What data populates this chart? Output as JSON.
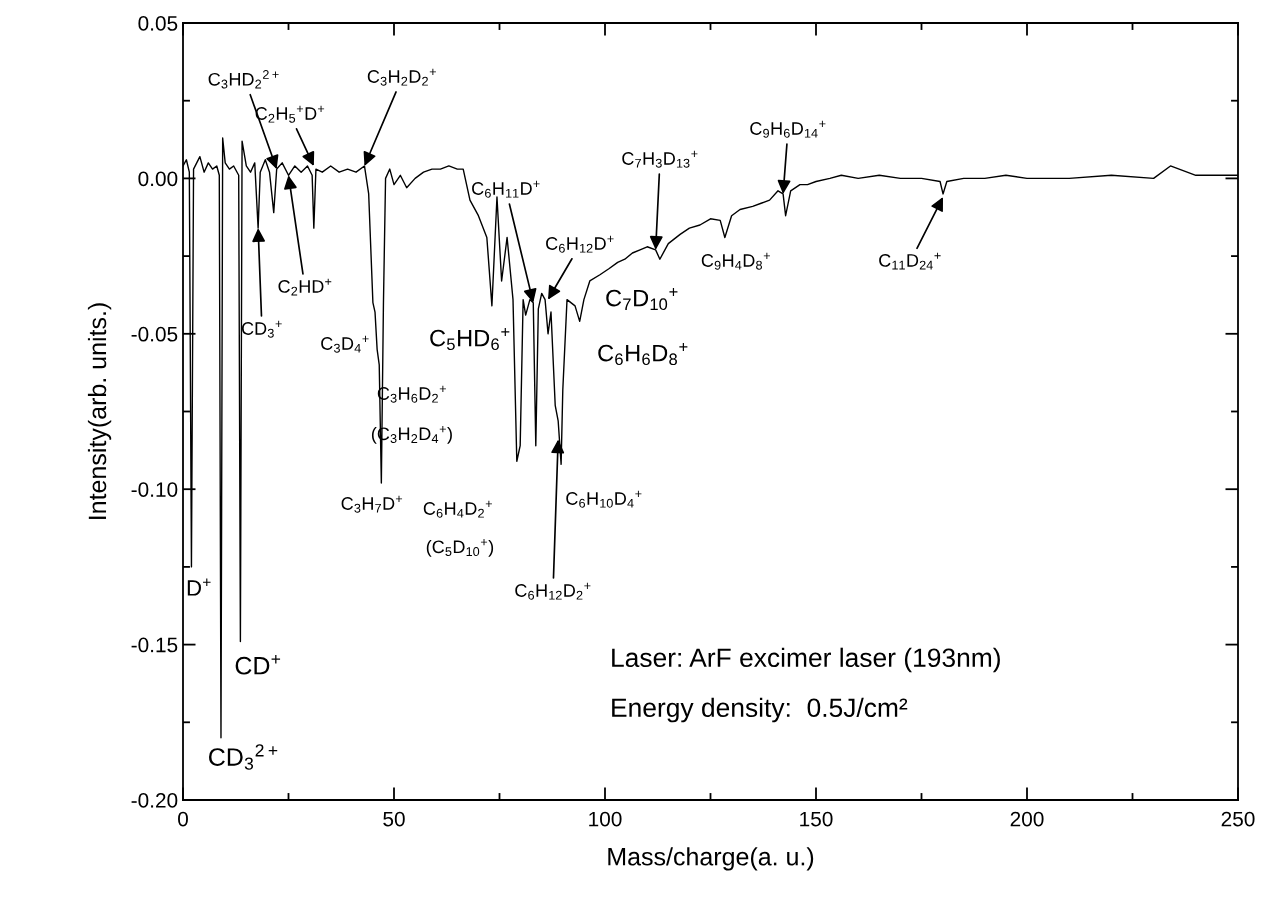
{
  "chart_data": {
    "type": "line",
    "xlabel": "Mass/charge(a. u.)",
    "ylabel": "Intensity(arb. units.)",
    "xlim": [
      0,
      250
    ],
    "xticks": [
      0,
      50,
      100,
      150,
      200,
      250
    ],
    "ylim": [
      -0.2,
      0.05
    ],
    "yticks": [
      {
        "value": -0.2,
        "label": "-0.20"
      },
      {
        "value": -0.15,
        "label": "-0.15"
      },
      {
        "value": -0.1,
        "label": "-0.10"
      },
      {
        "value": -0.05,
        "label": "-0.05"
      },
      {
        "value": 0,
        "label": "0.00"
      },
      {
        "value": 0.05,
        "label": "0.05"
      }
    ],
    "grid": false,
    "legend": false,
    "marker": "none",
    "line_style": "solid",
    "series": [
      {
        "color": "#000000",
        "x": [
          0,
          0.8,
          1.5,
          2,
          2.5,
          4,
          5,
          6,
          7,
          8,
          8.6,
          9,
          9.4,
          10,
          11,
          12,
          13.2,
          13.6,
          14,
          15,
          16,
          17,
          17.8,
          18.3,
          19.5,
          20.5,
          21.5,
          22.2,
          23.5,
          25,
          26.5,
          28,
          29.5,
          30.6,
          31,
          31.5,
          33,
          35,
          37,
          39,
          41,
          43,
          44,
          45,
          45.5,
          46,
          46.5,
          47,
          47.5,
          48,
          49,
          50,
          51.5,
          53,
          55,
          57,
          59,
          61,
          63,
          65,
          66.4,
          68,
          70,
          72,
          73.2,
          74.4,
          75.5,
          76.8,
          78.2,
          79.1,
          79.9,
          80.6,
          81.2,
          82.2,
          83,
          83.6,
          84.2,
          85,
          85.8,
          86.5,
          87.2,
          88.2,
          88.9,
          89.6,
          90,
          91,
          92.9,
          94,
          95,
          96.4,
          98.8,
          101,
          103,
          104.7,
          106.5,
          108.3,
          110,
          112,
          113,
          115,
          117.8,
          120,
          122.5,
          125,
          127.3,
          128.4,
          130,
          132,
          135,
          137,
          139,
          141,
          142.2,
          142.8,
          144,
          146.2,
          148,
          150,
          153.3,
          156,
          160,
          165,
          170,
          175,
          179.4,
          180.1,
          181,
          185,
          190,
          195,
          200,
          210,
          220,
          230,
          234,
          240,
          245,
          250
        ],
        "values": [
          0.004,
          0.006,
          0.002,
          -0.125,
          0.003,
          0.007,
          0.002,
          0.005,
          0.003,
          0.004,
          0.001,
          -0.18,
          0.013,
          0.005,
          0.003,
          0.004,
          0.001,
          -0.149,
          0.012,
          0.004,
          0.002,
          0.005,
          -0.016,
          0.002,
          0.006,
          0.002,
          -0.011,
          0.003,
          0.005,
          0.001,
          0.004,
          0.002,
          0.004,
          0.001,
          -0.016,
          0.003,
          0.002,
          0.004,
          0.002,
          0.003,
          0.002,
          0.004,
          -0.005,
          -0.04,
          -0.043,
          -0.055,
          -0.06,
          -0.098,
          -0.04,
          0.0,
          0.003,
          -0.002,
          0.001,
          -0.003,
          0.0,
          0.002,
          0.003,
          0.003,
          0.004,
          0.003,
          0.003,
          -0.007,
          -0.012,
          -0.019,
          -0.041,
          -0.006,
          -0.033,
          -0.019,
          -0.039,
          -0.091,
          -0.086,
          -0.039,
          -0.044,
          -0.039,
          -0.04,
          -0.086,
          -0.042,
          -0.037,
          -0.039,
          -0.05,
          -0.043,
          -0.073,
          -0.078,
          -0.092,
          -0.068,
          -0.039,
          -0.041,
          -0.046,
          -0.039,
          -0.033,
          -0.031,
          -0.029,
          -0.027,
          -0.026,
          -0.024,
          -0.023,
          -0.022,
          -0.023,
          -0.026,
          -0.021,
          -0.018,
          -0.016,
          -0.015,
          -0.013,
          -0.0135,
          -0.019,
          -0.012,
          -0.01,
          -0.009,
          -0.008,
          -0.007,
          -0.004,
          -0.005,
          -0.012,
          -0.004,
          -0.002,
          -0.002,
          -0.001,
          0.0,
          0.001,
          0.0,
          0.001,
          0.0,
          0.0,
          -0.001,
          -0.005,
          -0.001,
          0.0,
          0.0,
          0.001,
          0.0,
          0.0,
          0.001,
          0.0,
          0.004,
          0.001,
          0.001,
          0.001
        ]
      }
    ],
    "annotations": [
      {
        "text": "D$^{+}$",
        "x": 2,
        "y": -0.125
      },
      {
        "text": "CD$^{+}$",
        "x": 13.6,
        "y": -0.149
      },
      {
        "text": "CD$_{3}$$^{2+}$",
        "x": 9,
        "y": -0.18
      },
      {
        "text": "CD$_{3}$$^{+}$",
        "x": 17.8,
        "y": -0.016
      },
      {
        "text": "C$_{2}$HD$^{+}$",
        "x": 25,
        "y": 0.001
      },
      {
        "text": "C$_{3}$HD$_{2}$$^{2+}$",
        "x": 22.2,
        "y": 0.003
      },
      {
        "text": "C$_{2}$H$_{5}$$^{+}$D$^{+}$",
        "x": 31,
        "y": 0.004
      },
      {
        "text": "C$_{3}$H$_{2}$D$_{2}$$^{+}$",
        "x": 43,
        "y": 0.004
      },
      {
        "text": "C$_{3}$D$_{4}$$^{+}$",
        "x": 45.5,
        "y": -0.043
      },
      {
        "text": "C$_{3}$H$_{6}$D$_{2}$$^{+}$",
        "x": 46.5,
        "y": -0.06
      },
      "(C$_{3}$H$_{2}$D$_{4}$$^{+}$)",
      {
        "text": "C$_{3}$H$_{7}$D$^{+}$",
        "x": 47,
        "y": -0.098
      },
      "C$_{5}$HD$_{6}$$^{+}$",
      "C$_{6}$H$_{4}$D$_{2}$$^{+}$",
      "(C$_{5}$D$_{10}$$^{+}$)",
      {
        "text": "C$_{6}$H$_{12}$D$_{2}$$^{+}$",
        "x": 88.9,
        "y": -0.084
      },
      {
        "text": "C$_{6}$H$_{10}$D$_{4}$$^{+}$",
        "x": 89.6,
        "y": -0.092
      },
      {
        "text": "C$_{6}$H$_{11}$D$^{+}$",
        "x": 83,
        "y": -0.04
      },
      {
        "text": "C$_{6}$H$_{12}$D$^{+}$",
        "x": 86.5,
        "y": -0.039
      },
      {
        "text": "C$_{7}$D$_{10}$$^{+}$",
        "x": 96.4,
        "y": -0.033
      },
      {
        "text": "C$_{6}$H$_{6}$D$_{8}$$^{+}$",
        "x": 94,
        "y": -0.046
      },
      {
        "text": "C$_{7}$H$_{3}$D$_{13}$$^{+}$",
        "x": 112,
        "y": -0.023
      },
      {
        "text": "C$_{9}$H$_{4}$D$_{8}$$^{+}$",
        "x": 128.4,
        "y": -0.019
      },
      {
        "text": "C$_{9}$H$_{6}$D$_{14}$$^{+}$",
        "x": 142.2,
        "y": -0.005
      },
      {
        "text": "C$_{11}$D$_{24}$$^{+}$",
        "x": 180.1,
        "y": -0.006
      },
      "Laser: ArF excimer laser (193nm)",
      "Energy density:  0.5J/cm²"
    ]
  }
}
